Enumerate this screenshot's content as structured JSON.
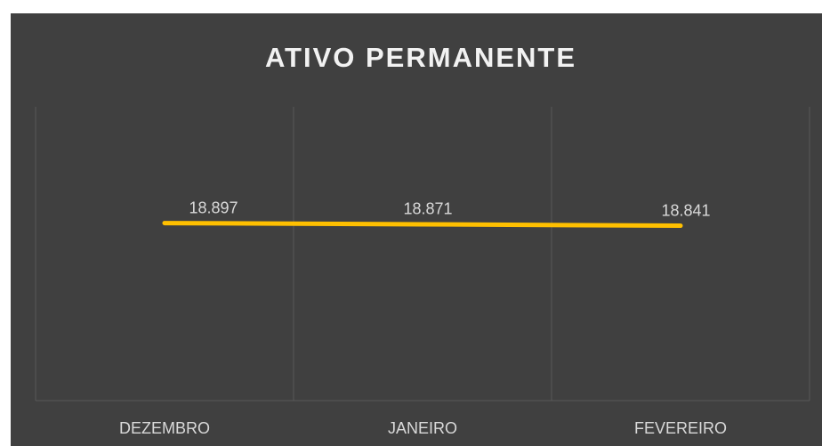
{
  "chart_data": {
    "type": "line",
    "title": "ATIVO PERMANENTE",
    "categories": [
      "DEZEMBRO",
      "JANEIRO",
      "FEVEREIRO"
    ],
    "series": [
      {
        "name": "ATIVO PERMANENTE",
        "color": "#ffc000",
        "values": [
          18897,
          18871,
          18841
        ],
        "value_labels": [
          "18.897",
          "18.871",
          "18.841"
        ]
      }
    ],
    "ylim": [
      15150,
      21350
    ]
  }
}
